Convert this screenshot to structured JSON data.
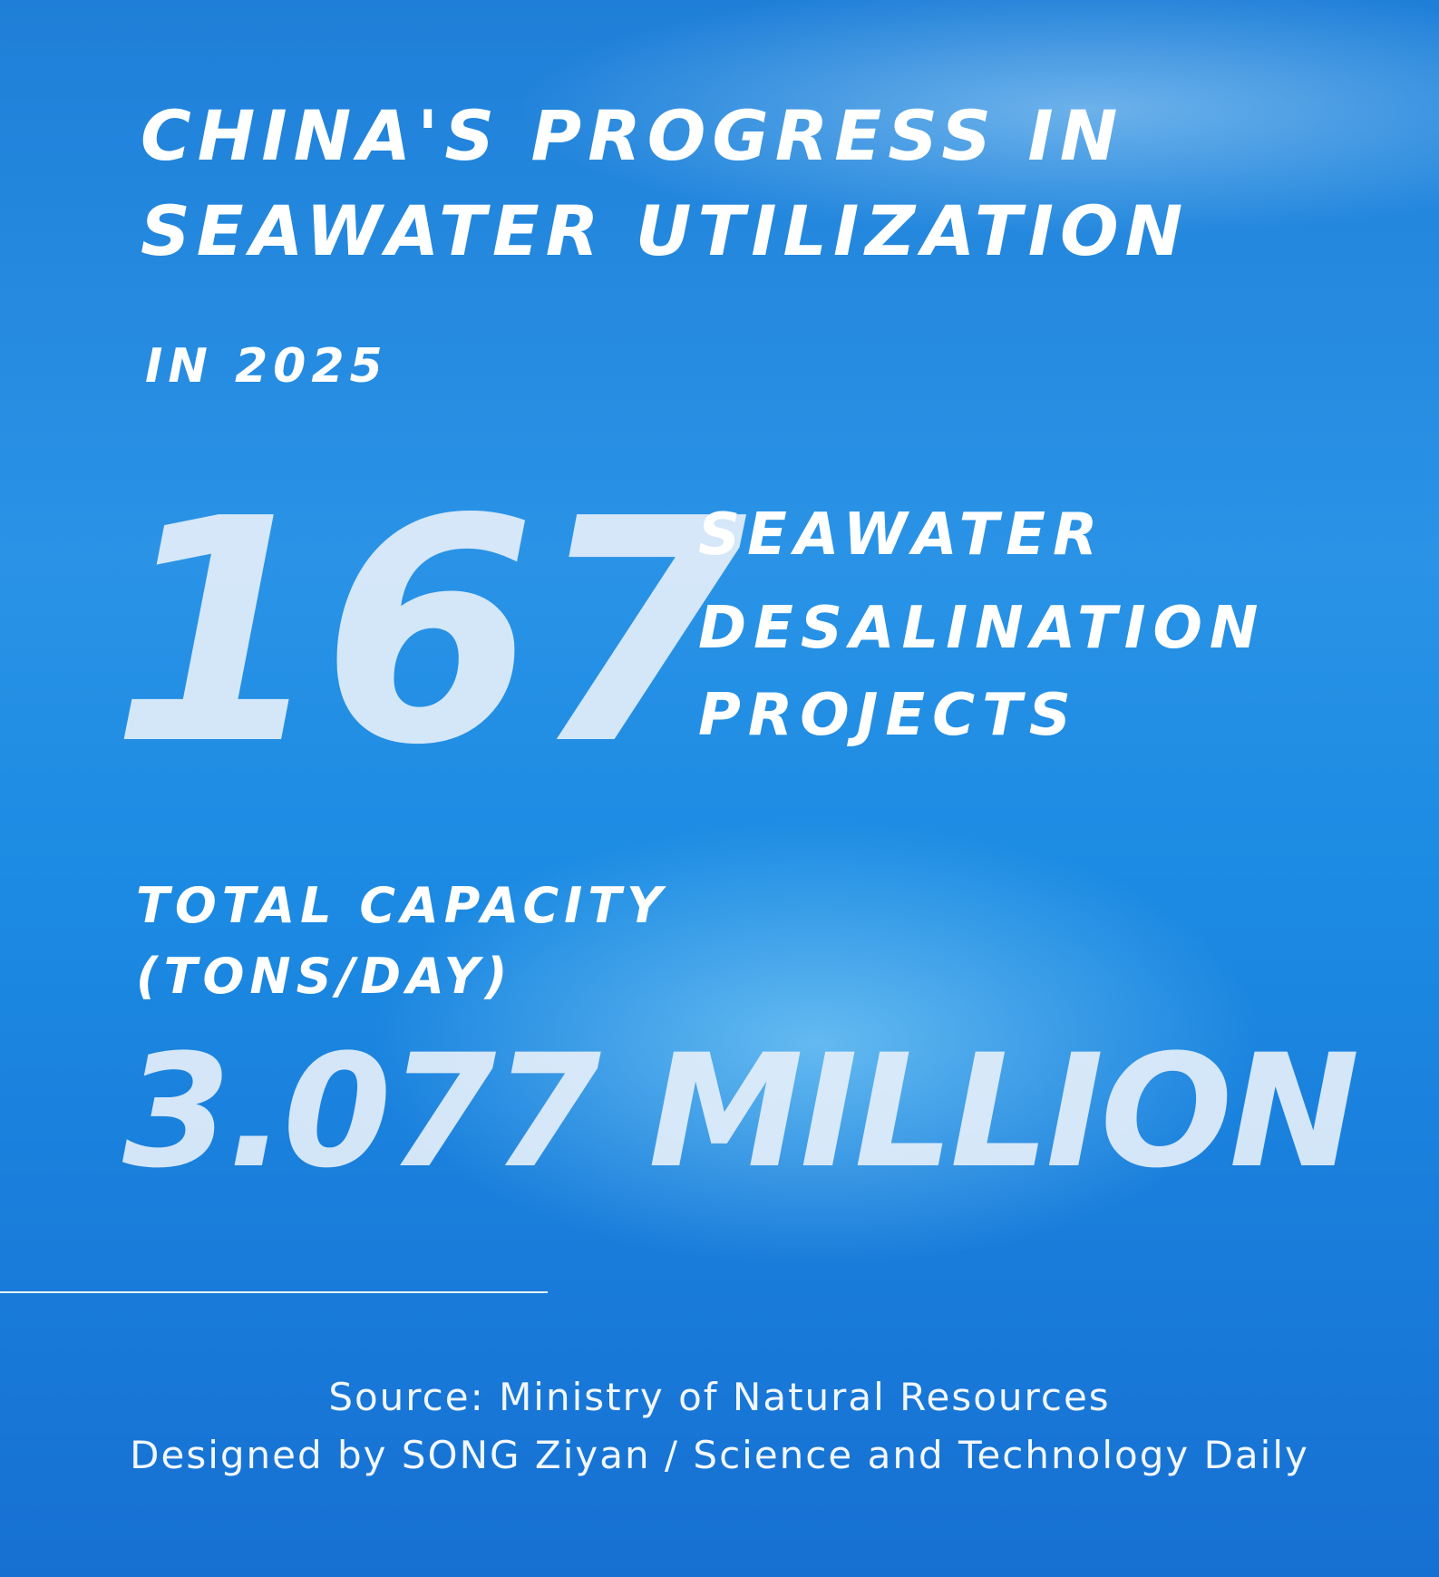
{
  "header": {
    "title_lines": [
      "CHINA'S PROGRESS IN",
      "SEAWATER UTILIZATION"
    ],
    "year": "IN 2025"
  },
  "stat_projects": {
    "number": "167",
    "label_lines": [
      "SEAWATER",
      "DESALINATION",
      "PROJECTS"
    ]
  },
  "stat_capacity": {
    "label_lines": [
      "TOTAL CAPACITY",
      "(TONS/DAY)"
    ],
    "number": "3.077 MILLION"
  },
  "footer": {
    "source": "Source: Ministry of Natural Resources",
    "credit": "Designed by SONG Ziyan / Science and Technology Daily"
  }
}
